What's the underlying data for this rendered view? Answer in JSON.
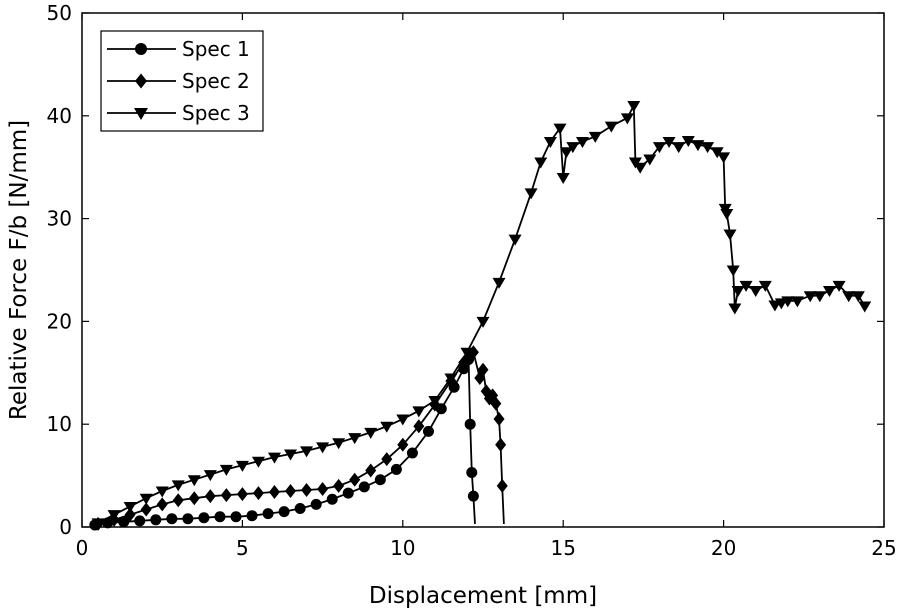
{
  "chart_data": {
    "type": "line",
    "xlabel": "Displacement  [mm]",
    "ylabel": "Relative  Force  F/b  [N/mm]",
    "xlim": [
      0,
      25
    ],
    "ylim": [
      0,
      50
    ],
    "xticks": [
      0,
      5,
      10,
      15,
      20,
      25
    ],
    "yticks": [
      0,
      10,
      20,
      30,
      40,
      50
    ],
    "grid": false,
    "legend_position": "top-left",
    "series": [
      {
        "name": "Spec  1",
        "marker": "circle",
        "color": "#000000",
        "x": [
          0.4,
          0.8,
          1.3,
          1.8,
          2.3,
          2.8,
          3.3,
          3.8,
          4.3,
          4.8,
          5.3,
          5.8,
          6.3,
          6.8,
          7.3,
          7.8,
          8.3,
          8.8,
          9.3,
          9.8,
          10.3,
          10.8,
          11.2,
          11.6,
          11.9,
          12.05,
          12.1,
          12.15,
          12.2,
          12.25
        ],
        "y": [
          0.2,
          0.4,
          0.5,
          0.6,
          0.7,
          0.8,
          0.8,
          0.9,
          1.0,
          1.0,
          1.1,
          1.3,
          1.5,
          1.8,
          2.2,
          2.7,
          3.3,
          3.9,
          4.6,
          5.6,
          7.2,
          9.3,
          11.5,
          13.6,
          15.4,
          16.3,
          10.0,
          5.3,
          3.0,
          0.3
        ]
      },
      {
        "name": "Spec  2",
        "marker": "diamond",
        "color": "#000000",
        "x": [
          0.5,
          1.0,
          1.5,
          2.0,
          2.5,
          3.0,
          3.5,
          4.0,
          4.5,
          5.0,
          5.5,
          6.0,
          6.5,
          7.0,
          7.5,
          8.0,
          8.5,
          9.0,
          9.5,
          10.0,
          10.5,
          11.0,
          11.5,
          11.9,
          12.2,
          12.4,
          12.5,
          12.6,
          12.7,
          12.8,
          12.9,
          13.0,
          13.05,
          13.1,
          13.15
        ],
        "y": [
          0.3,
          0.7,
          1.2,
          1.7,
          2.2,
          2.6,
          2.8,
          3.0,
          3.1,
          3.2,
          3.3,
          3.4,
          3.5,
          3.6,
          3.7,
          4.0,
          4.6,
          5.5,
          6.6,
          8.0,
          9.8,
          11.9,
          14.2,
          16.0,
          17.0,
          14.5,
          15.3,
          13.2,
          12.5,
          12.8,
          12.0,
          10.5,
          8.0,
          4.0,
          0.3
        ]
      },
      {
        "name": "Spec  3",
        "marker": "triangle-down",
        "color": "#000000",
        "x": [
          0.5,
          1.0,
          1.5,
          2.0,
          2.5,
          3.0,
          3.5,
          4.0,
          4.5,
          5.0,
          5.5,
          6.0,
          6.5,
          7.0,
          7.5,
          8.0,
          8.5,
          9.0,
          9.5,
          10.0,
          10.5,
          11.0,
          11.5,
          12.0,
          12.5,
          13.0,
          13.5,
          14.0,
          14.3,
          14.6,
          14.9,
          15.0,
          15.1,
          15.3,
          15.6,
          16.0,
          16.5,
          17.0,
          17.2,
          17.25,
          17.4,
          17.7,
          18.0,
          18.3,
          18.6,
          18.9,
          19.2,
          19.5,
          19.8,
          20.0,
          20.05,
          20.1,
          20.2,
          20.3,
          20.35,
          20.45,
          20.7,
          21.0,
          21.3,
          21.6,
          21.8,
          22.0,
          22.3,
          22.7,
          23.0,
          23.3,
          23.6,
          23.9,
          24.2,
          24.4
        ],
        "y": [
          0.4,
          1.2,
          2.0,
          2.8,
          3.5,
          4.1,
          4.6,
          5.1,
          5.6,
          6.0,
          6.4,
          6.8,
          7.1,
          7.4,
          7.8,
          8.2,
          8.7,
          9.2,
          9.8,
          10.5,
          11.3,
          12.3,
          14.5,
          17.0,
          20.0,
          23.8,
          28.0,
          32.5,
          35.5,
          37.5,
          38.8,
          34.0,
          36.5,
          37.0,
          37.5,
          38.0,
          39.0,
          39.8,
          41.0,
          35.5,
          35.0,
          35.8,
          37.0,
          37.5,
          37.0,
          37.6,
          37.2,
          37.0,
          36.5,
          36.0,
          31.0,
          30.5,
          28.5,
          25.0,
          21.3,
          23.0,
          23.5,
          23.0,
          23.5,
          21.6,
          21.8,
          22.0,
          22.0,
          22.5,
          22.5,
          23.0,
          23.5,
          22.5,
          22.5,
          21.5
        ]
      }
    ]
  }
}
